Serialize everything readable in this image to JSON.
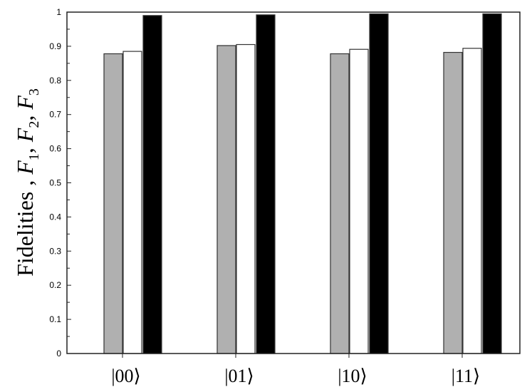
{
  "chart_data": {
    "type": "bar",
    "title": "",
    "xlabel": "",
    "ylabel": "Fidelities , F1, F2, F3",
    "ylabel_parts": {
      "prefix": "Fidelities , ",
      "f": "F",
      "sub1": "1",
      "sub2": "2",
      "sub3": "3",
      "sep": ", "
    },
    "categories": [
      "|00⟩",
      "|01⟩",
      "|10⟩",
      "|11⟩"
    ],
    "series": [
      {
        "values": [
          0.878,
          0.902,
          0.878,
          0.882
        ],
        "color": "#b0b0b0"
      },
      {
        "values": [
          0.885,
          0.905,
          0.891,
          0.894
        ],
        "color": "#ffffff"
      },
      {
        "values": [
          0.99,
          0.992,
          0.995,
          0.995
        ],
        "color": "#000000"
      }
    ],
    "ylim": [
      0,
      1
    ],
    "yticks": [
      "0",
      "0.1",
      "0.2",
      "0.3",
      "0.4",
      "0.5",
      "0.6",
      "0.7",
      "0.8",
      "0.9",
      "1"
    ],
    "grid": false,
    "legend": "none"
  }
}
